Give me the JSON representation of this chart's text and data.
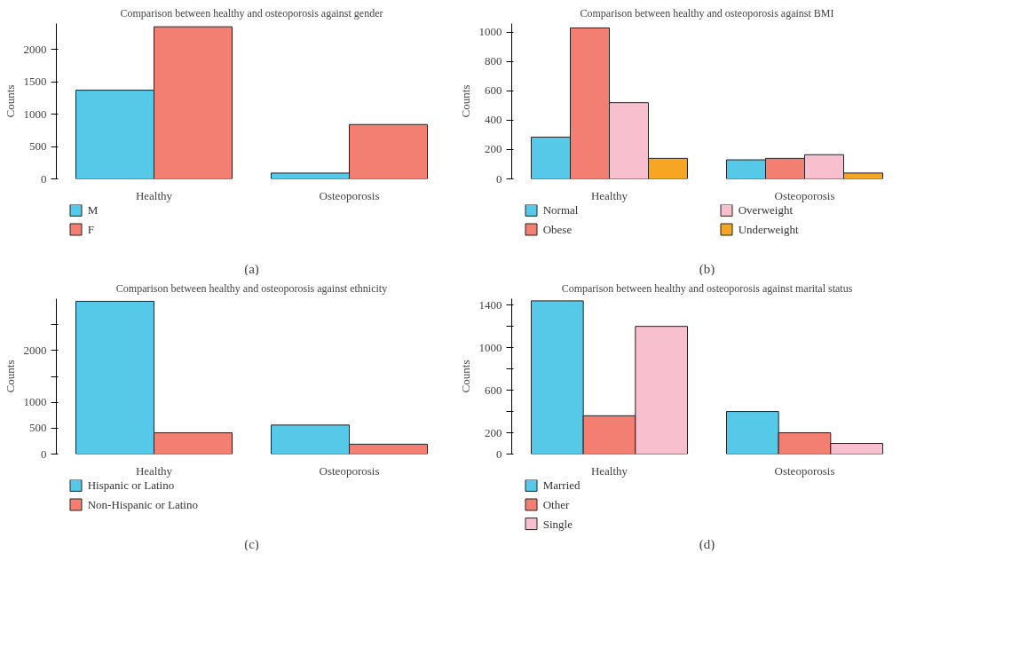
{
  "chart_data": [
    {
      "type": "bar",
      "title": "Comparison between healthy and osteoporosis against gender",
      "ylabel": "Counts",
      "categories": [
        "Healthy",
        "Osteoporosis"
      ],
      "ylim": [
        0,
        2400
      ],
      "yticks": [
        0,
        500,
        1000,
        1500,
        2000
      ],
      "grid": false,
      "legend": "bottom",
      "annotations": [
        "(a)"
      ],
      "series": [
        {
          "name": "M",
          "color": "#56c9e8",
          "values": [
            1370,
            90
          ]
        },
        {
          "name": "F",
          "color": "#f37f72",
          "values": [
            2350,
            840
          ]
        }
      ]
    },
    {
      "type": "bar",
      "title": "Comparison between healthy and osteoporosis against BMI",
      "ylabel": "Counts",
      "categories": [
        "Healthy",
        "Osteoporosis"
      ],
      "ylim": [
        0,
        1060
      ],
      "yticks": [
        0,
        200,
        400,
        600,
        800,
        1000
      ],
      "grid": false,
      "legend": "bottom",
      "annotations": [
        "(b)"
      ],
      "series": [
        {
          "name": "Normal",
          "color": "#56c9e8",
          "values": [
            285,
            130
          ]
        },
        {
          "name": "Obese",
          "color": "#f37f72",
          "values": [
            1030,
            140
          ]
        },
        {
          "name": "Overweight",
          "color": "#f8c0ce",
          "values": [
            520,
            165
          ]
        },
        {
          "name": "Underweight",
          "color": "#f6a623",
          "values": [
            140,
            40
          ]
        }
      ]
    },
    {
      "type": "bar",
      "title": "Comparison between healthy and osteoporosis against ethnicity",
      "ylabel": "Counts",
      "categories": [
        "Healthy",
        "Osteoporosis"
      ],
      "ylim": [
        0,
        3000
      ],
      "yticks": [
        0,
        500,
        1000,
        {
          "value": 1500,
          "label": null
        },
        2000,
        {
          "value": 2500,
          "label": null
        }
      ],
      "grid": false,
      "legend": "bottom",
      "annotations": [
        "(c)"
      ],
      "series": [
        {
          "name": "Hispanic or Latino",
          "color": "#56c9e8",
          "values": [
            2950,
            560
          ]
        },
        {
          "name": "Non-Hispanic or Latino",
          "color": "#f37f72",
          "values": [
            410,
            190
          ]
        }
      ]
    },
    {
      "type": "bar",
      "title": "Comparison between healthy and osteoporosis against marital status",
      "ylabel": "Counts",
      "categories": [
        "Healthy",
        "Osteoporosis"
      ],
      "ylim": [
        0,
        1460
      ],
      "yticks": [
        0,
        200,
        {
          "value": 400,
          "label": null
        },
        600,
        {
          "value": 800,
          "label": null
        },
        1000,
        {
          "value": 1200,
          "label": null
        },
        1400
      ],
      "grid": false,
      "legend": "bottom",
      "annotations": [
        "(d)"
      ],
      "series": [
        {
          "name": "Married",
          "color": "#56c9e8",
          "values": [
            1440,
            400
          ]
        },
        {
          "name": "Other",
          "color": "#f37f72",
          "values": [
            360,
            200
          ]
        },
        {
          "name": "Single",
          "color": "#f8c0ce",
          "values": [
            1200,
            100
          ]
        }
      ]
    }
  ]
}
